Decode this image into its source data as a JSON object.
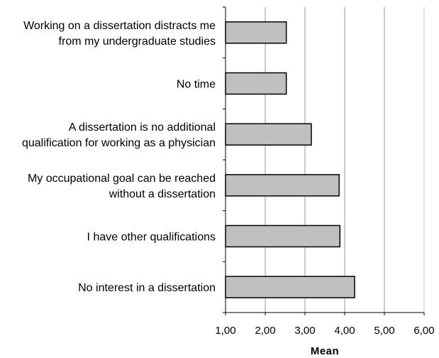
{
  "chart_data": {
    "type": "bar",
    "orientation": "horizontal",
    "categories": [
      [
        "Working on a dissertation distracts me",
        "from my undergraduate studies"
      ],
      [
        "No time"
      ],
      [
        "A dissertation is no additional",
        "qualification for working as a physician"
      ],
      [
        "My occupational goal can be reached",
        "without a dissertation"
      ],
      [
        "I have other qualifications"
      ],
      [
        "No interest in a dissertation"
      ]
    ],
    "values": [
      2.53,
      2.53,
      3.16,
      3.86,
      3.88,
      4.25
    ],
    "xlabel": "Mean",
    "ylabel": "",
    "xlim": [
      1.0,
      6.0
    ],
    "x_ticks": [
      "1,00",
      "2,00",
      "3,00",
      "4,00",
      "5,00",
      "6,00"
    ],
    "x_tick_values": [
      1,
      2,
      3,
      4,
      5,
      6
    ],
    "grid": "vertical",
    "colors": {
      "bar_fill": "#c0c0c0",
      "bar_stroke": "#000000",
      "grid": "#9a9a9a",
      "axis": "#000000"
    }
  }
}
